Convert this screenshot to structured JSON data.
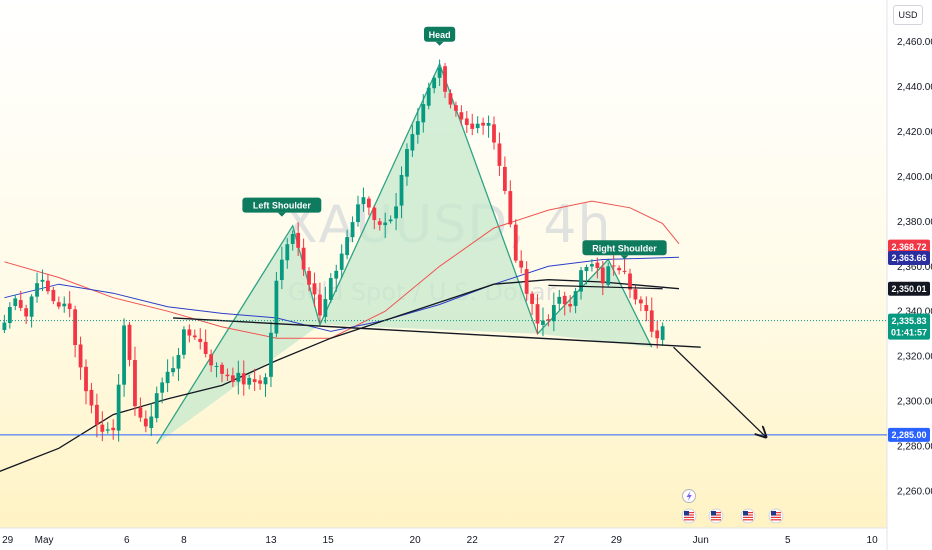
{
  "chart_data": {
    "type": "candlestick",
    "symbol": "XAUUSD, 4h",
    "watermark_sub": "Gold Spot / U.S. Dollar",
    "currency": "USD",
    "ylim": [
      2247,
      2472
    ],
    "y_ticks": [
      2260,
      2280,
      2300,
      2320,
      2340,
      2360,
      2380,
      2400,
      2420,
      2440,
      2460
    ],
    "y_tick_labels": [
      "2,260.00",
      "2,280.00",
      "2,300.00",
      "2,320.00",
      "2,340.00",
      "2,360.00",
      "2,380.00",
      "2,400.00",
      "2,420.00",
      "2,440.00",
      "2,460.00"
    ],
    "x_ticks": [
      {
        "label": "29",
        "pos": 0.6
      },
      {
        "label": "May",
        "pos": 7.3
      },
      {
        "label": "6",
        "pos": 22.5
      },
      {
        "label": "8",
        "pos": 33
      },
      {
        "label": "13",
        "pos": 49
      },
      {
        "label": "15",
        "pos": 59.5
      },
      {
        "label": "20",
        "pos": 75.5
      },
      {
        "label": "22",
        "pos": 86
      },
      {
        "label": "27",
        "pos": 102
      },
      {
        "label": "29",
        "pos": 112.5
      },
      {
        "label": "Jun",
        "pos": 128
      },
      {
        "label": "5",
        "pos": 144
      },
      {
        "label": "10",
        "pos": 159.5
      }
    ],
    "price_badges": [
      {
        "label": "2,368.72",
        "value": 2368.72,
        "color": "#f23645"
      },
      {
        "label": "2,363.66",
        "value": 2363.66,
        "color": "#2a2e9e"
      },
      {
        "label": "2,350.01",
        "value": 2350.01,
        "color": "#131722"
      },
      {
        "label": "2,335.83",
        "value": 2335.83,
        "color": "#089981",
        "sub": "01:41:57"
      },
      {
        "label": "2,285.00",
        "value": 2285.0,
        "color": "#2962ff"
      }
    ],
    "annotations": [
      {
        "label": "Left Shoulder",
        "i": 51,
        "price": 2387
      },
      {
        "label": "Head",
        "i": 80,
        "price": 2463
      },
      {
        "label": "Right Shoulder",
        "i": 114,
        "price": 2368
      }
    ],
    "pattern_points": [
      [
        28,
        2281
      ],
      [
        53,
        2378
      ],
      [
        58,
        2334
      ],
      [
        80,
        2450
      ],
      [
        98,
        2330
      ],
      [
        111,
        2363
      ],
      [
        119,
        2324
      ]
    ],
    "neckline": [
      [
        31,
        2337
      ],
      [
        128,
        2324
      ]
    ],
    "projection": [
      [
        123,
        2324
      ],
      [
        140,
        2284
      ]
    ],
    "support_level": 2285,
    "resistance_line": [
      [
        100,
        2351.5
      ],
      [
        121,
        2350
      ]
    ],
    "ma_red": [
      [
        0,
        2362
      ],
      [
        10,
        2355
      ],
      [
        20,
        2346
      ],
      [
        30,
        2340
      ],
      [
        40,
        2333
      ],
      [
        50,
        2328
      ],
      [
        60,
        2328
      ],
      [
        70,
        2340
      ],
      [
        80,
        2360
      ],
      [
        90,
        2377
      ],
      [
        100,
        2385
      ],
      [
        108,
        2389
      ],
      [
        115,
        2386
      ],
      [
        121,
        2379
      ],
      [
        124,
        2370
      ]
    ],
    "ma_blue": [
      [
        0,
        2346
      ],
      [
        10,
        2352
      ],
      [
        20,
        2348
      ],
      [
        30,
        2342
      ],
      [
        40,
        2339
      ],
      [
        50,
        2337
      ],
      [
        60,
        2331
      ],
      [
        70,
        2336
      ],
      [
        80,
        2343
      ],
      [
        90,
        2352
      ],
      [
        100,
        2360
      ],
      [
        110,
        2363
      ],
      [
        124,
        2364
      ]
    ],
    "ma_black": [
      [
        -8,
        2262
      ],
      [
        10,
        2279
      ],
      [
        20,
        2294
      ],
      [
        30,
        2301
      ],
      [
        40,
        2307
      ],
      [
        50,
        2318
      ],
      [
        60,
        2328
      ],
      [
        70,
        2336
      ],
      [
        80,
        2344
      ],
      [
        90,
        2352
      ],
      [
        100,
        2354
      ],
      [
        110,
        2353
      ],
      [
        124,
        2350
      ]
    ],
    "candle_anchors": [
      [
        0,
        2335
      ],
      [
        2,
        2348
      ],
      [
        4,
        2338
      ],
      [
        6,
        2355
      ],
      [
        9,
        2345
      ],
      [
        12,
        2340
      ],
      [
        14,
        2315
      ],
      [
        16,
        2297
      ],
      [
        18,
        2286
      ],
      [
        20,
        2289
      ],
      [
        22,
        2331
      ],
      [
        24,
        2300
      ],
      [
        26,
        2286
      ],
      [
        28,
        2304
      ],
      [
        29,
        2308
      ],
      [
        31,
        2316
      ],
      [
        33,
        2329
      ],
      [
        35,
        2330
      ],
      [
        37,
        2322
      ],
      [
        39,
        2314
      ],
      [
        42,
        2311
      ],
      [
        45,
        2308
      ],
      [
        48,
        2310
      ],
      [
        50,
        2352
      ],
      [
        52,
        2372
      ],
      [
        53,
        2376
      ],
      [
        55,
        2361
      ],
      [
        57,
        2348
      ],
      [
        58,
        2337
      ],
      [
        60,
        2352
      ],
      [
        62,
        2366
      ],
      [
        64,
        2380
      ],
      [
        66,
        2391
      ],
      [
        68,
        2382
      ],
      [
        70,
        2378
      ],
      [
        72,
        2388
      ],
      [
        74,
        2410
      ],
      [
        76,
        2422
      ],
      [
        78,
        2438
      ],
      [
        80,
        2448
      ],
      [
        82,
        2433
      ],
      [
        84,
        2427
      ],
      [
        86,
        2420
      ],
      [
        88,
        2424
      ],
      [
        90,
        2418
      ],
      [
        92,
        2393
      ],
      [
        94,
        2365
      ],
      [
        96,
        2348
      ],
      [
        98,
        2334
      ],
      [
        100,
        2338
      ],
      [
        102,
        2344
      ],
      [
        104,
        2345
      ],
      [
        106,
        2357
      ],
      [
        108,
        2360
      ],
      [
        110,
        2354
      ],
      [
        112,
        2362
      ],
      [
        114,
        2360
      ],
      [
        116,
        2345
      ],
      [
        118,
        2338
      ],
      [
        120,
        2328
      ],
      [
        121,
        2336
      ]
    ],
    "candle_step": 5.44,
    "candle_x0": 4.4
  },
  "icons": {
    "flash": "lightning-icon",
    "events": "us-flag-icon"
  },
  "colors": {
    "up": "#089981",
    "down": "#f23645",
    "pattern_fill": "#c6e8cc",
    "pattern_line": "#2fa385",
    "badge": "#0e7a5e"
  }
}
